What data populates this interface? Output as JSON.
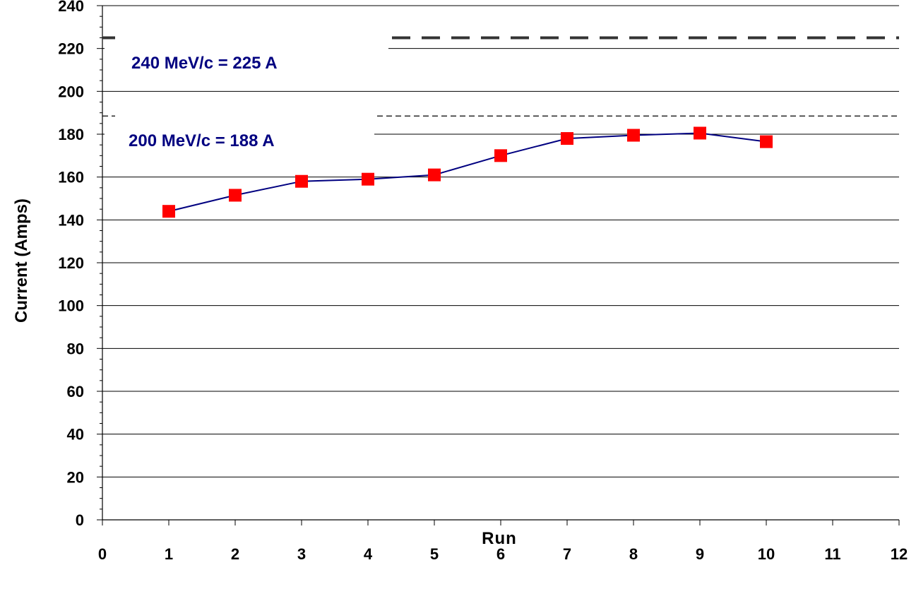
{
  "chart_data": {
    "type": "line",
    "title": "",
    "xlabel": "Run",
    "ylabel": "Current (Amps)",
    "xlim": [
      0,
      12
    ],
    "ylim": [
      0,
      240
    ],
    "x_ticks": [
      "0",
      "1",
      "2",
      "3",
      "4",
      "5",
      "6",
      "7",
      "8",
      "9",
      "10",
      "11",
      "12"
    ],
    "y_ticks": [
      "0",
      "20",
      "40",
      "60",
      "80",
      "100",
      "120",
      "140",
      "160",
      "180",
      "200",
      "220",
      "240"
    ],
    "grid": "horizontal",
    "series": [
      {
        "x": [
          1,
          2,
          3,
          4,
          5,
          6,
          7,
          8,
          9,
          10
        ],
        "y": [
          144,
          151.5,
          158,
          159,
          161,
          170,
          178,
          179.5,
          180.5,
          176.5
        ],
        "line_color": "#000080",
        "marker": "square",
        "marker_color": "#ff0000"
      }
    ],
    "reference_lines": [
      {
        "label": "240 MeV/c = 225 A",
        "y": 225,
        "style": "dashed-thick",
        "color": "#333333",
        "label_color": "#000080"
      },
      {
        "label": "200 MeV/c  = 188 A",
        "y": 188.5,
        "style": "dashed-thin",
        "color": "#000000",
        "label_color": "#000080"
      }
    ]
  }
}
